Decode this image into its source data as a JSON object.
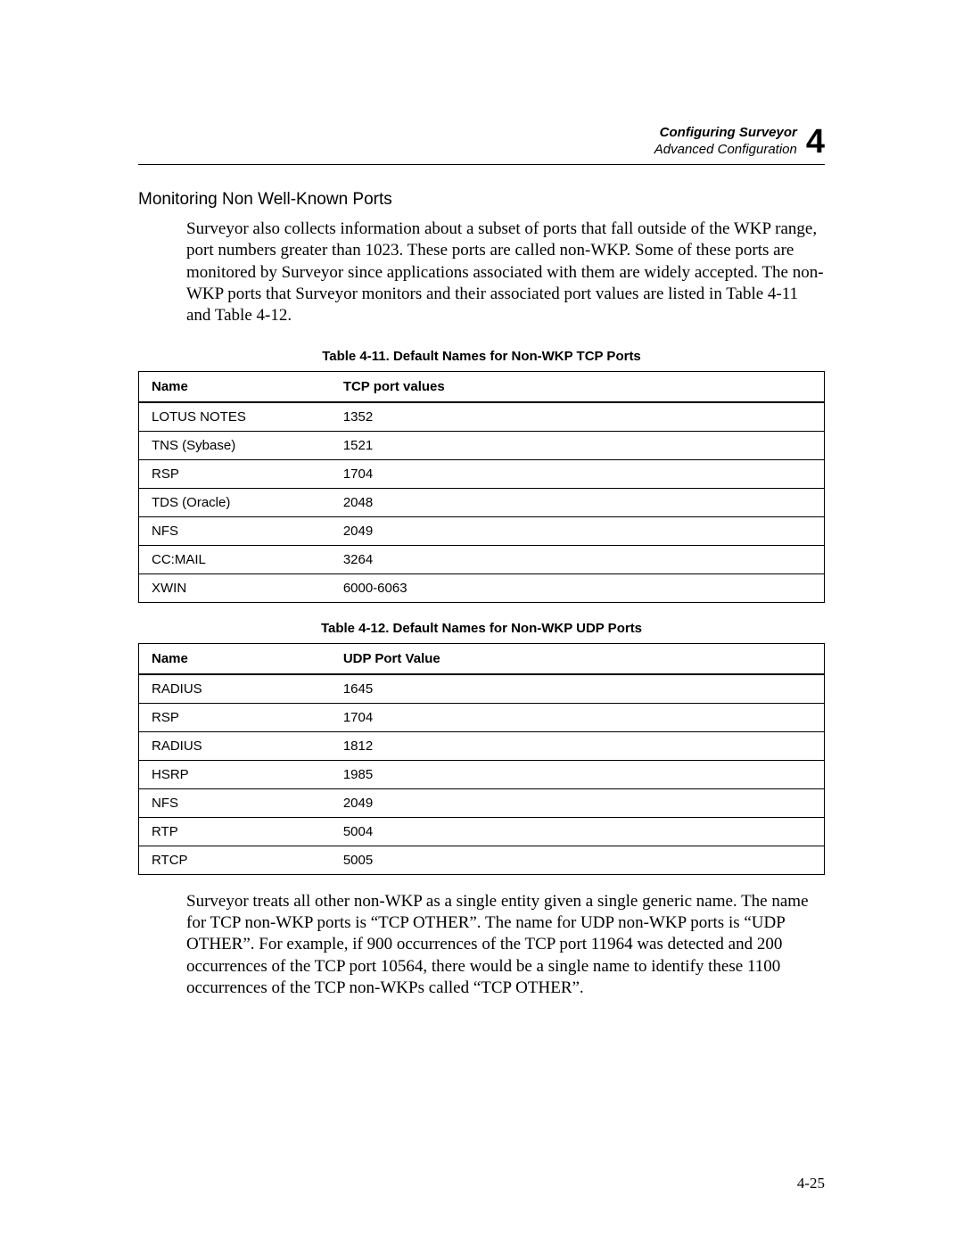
{
  "header": {
    "line1": "Configuring Surveyor",
    "line2": "Advanced Configuration",
    "chapter_number": "4"
  },
  "section_heading": "Monitoring Non Well-Known Ports",
  "paragraph1": "Surveyor also collects information about a subset of ports that fall outside of the WKP range, port numbers greater than 1023. These ports are called non-WKP. Some of these ports are monitored by Surveyor since applications associated with them are widely accepted. The non-WKP ports that Surveyor monitors and their associated port values are listed in Table 4-11 and Table 4-12.",
  "table1": {
    "caption": "Table 4-11. Default Names for Non-WKP TCP Ports",
    "columns": [
      "Name",
      "TCP port values"
    ],
    "rows": [
      [
        "LOTUS NOTES",
        "1352"
      ],
      [
        "TNS (Sybase)",
        "1521"
      ],
      [
        "RSP",
        "1704"
      ],
      [
        "TDS (Oracle)",
        "2048"
      ],
      [
        "NFS",
        "2049"
      ],
      [
        "CC:MAIL",
        "3264"
      ],
      [
        "XWIN",
        "6000-6063"
      ]
    ]
  },
  "table2": {
    "caption": "Table 4-12. Default Names for Non-WKP UDP Ports",
    "columns": [
      "Name",
      "UDP Port Value"
    ],
    "rows": [
      [
        "RADIUS",
        "1645"
      ],
      [
        "RSP",
        "1704"
      ],
      [
        "RADIUS",
        "1812"
      ],
      [
        "HSRP",
        "1985"
      ],
      [
        "NFS",
        "2049"
      ],
      [
        "RTP",
        "5004"
      ],
      [
        "RTCP",
        "5005"
      ]
    ]
  },
  "paragraph2": "Surveyor treats all other non-WKP as a single entity given a single generic name. The name for TCP non-WKP ports is “TCP OTHER”. The name for UDP non-WKP ports is “UDP OTHER”. For example, if 900 occurrences of the TCP port 11964 was detected and 200 occurrences of the TCP port 10564, there would be a single name to identify these 1100 occurrences of the TCP non-WKPs called “TCP OTHER”.",
  "page_number": "4-25"
}
